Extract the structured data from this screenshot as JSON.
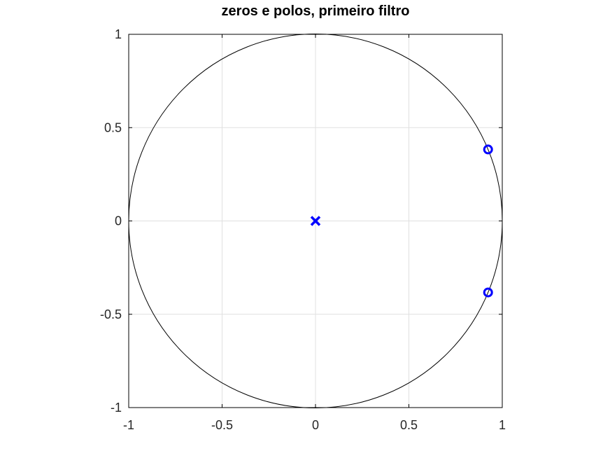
{
  "chart_data": {
    "type": "scatter",
    "title": "zeros e polos, primeiro filtro",
    "xlabel": "",
    "ylabel": "",
    "xlim": [
      -1,
      1
    ],
    "ylim": [
      -1,
      1
    ],
    "grid": true,
    "xticks": [
      -1,
      -0.5,
      0,
      0.5,
      1
    ],
    "yticks": [
      -1,
      -0.5,
      0,
      0.5,
      1
    ],
    "xtick_labels": [
      "-1",
      "-0.5",
      "0",
      "0.5",
      "1"
    ],
    "ytick_labels": [
      "-1",
      "-0.5",
      "0",
      "0.5",
      "1"
    ],
    "unit_circle": true,
    "marker_color": "#0000ff",
    "zeros": [
      {
        "re": 0.924,
        "im": 0.383
      },
      {
        "re": 0.924,
        "im": -0.383
      }
    ],
    "poles": [
      {
        "re": 0,
        "im": 0
      }
    ]
  }
}
